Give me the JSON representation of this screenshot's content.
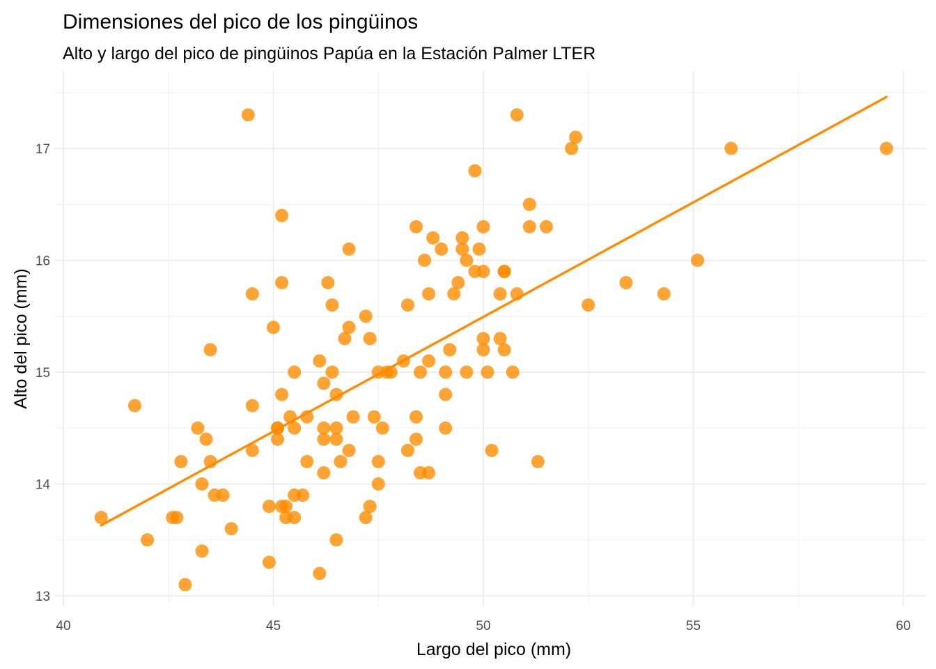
{
  "chart_data": {
    "type": "scatter",
    "title": "Dimensiones del pico de los pingüinos",
    "subtitle": "Alto y largo del pico de pingüinos Papúa en la Estación Palmer LTER",
    "xlabel": "Largo del pico (mm)",
    "ylabel": "Alto del pico (mm)",
    "xlim": [
      40,
      60.5
    ],
    "ylim": [
      12.9,
      17.6
    ],
    "x_ticks": [
      40,
      45,
      50,
      55,
      60
    ],
    "x_tick_labels": [
      "40",
      "45",
      "50",
      "55",
      "60"
    ],
    "y_ticks": [
      13,
      14,
      15,
      16,
      17
    ],
    "y_tick_labels": [
      "13",
      "14",
      "15",
      "16",
      "17"
    ],
    "grid": true,
    "legend": "none",
    "point_color": "#FF8C00",
    "point_opacity": 0.8,
    "line_color": "#FF8C00",
    "trend_line": {
      "type": "linear",
      "from": [
        40.9,
        13.63
      ],
      "to": [
        59.6,
        17.46
      ]
    },
    "points": [
      [
        40.9,
        13.7
      ],
      [
        41.7,
        14.7
      ],
      [
        42.0,
        13.5
      ],
      [
        42.6,
        13.7
      ],
      [
        42.7,
        13.7
      ],
      [
        42.8,
        14.2
      ],
      [
        42.9,
        13.1
      ],
      [
        43.2,
        14.5
      ],
      [
        43.3,
        14.0
      ],
      [
        43.3,
        13.4
      ],
      [
        43.4,
        14.4
      ],
      [
        43.5,
        15.2
      ],
      [
        43.5,
        14.2
      ],
      [
        43.6,
        13.9
      ],
      [
        43.8,
        13.9
      ],
      [
        44.0,
        13.6
      ],
      [
        44.4,
        17.3
      ],
      [
        44.5,
        15.7
      ],
      [
        44.5,
        14.7
      ],
      [
        44.5,
        14.3
      ],
      [
        44.9,
        13.8
      ],
      [
        44.9,
        13.3
      ],
      [
        45.0,
        15.4
      ],
      [
        45.1,
        14.5
      ],
      [
        45.1,
        14.5
      ],
      [
        45.1,
        14.4
      ],
      [
        45.2,
        16.4
      ],
      [
        45.2,
        15.8
      ],
      [
        45.2,
        14.8
      ],
      [
        45.2,
        13.8
      ],
      [
        45.3,
        13.8
      ],
      [
        45.3,
        13.7
      ],
      [
        45.4,
        14.6
      ],
      [
        45.5,
        15.0
      ],
      [
        45.5,
        14.5
      ],
      [
        45.5,
        13.9
      ],
      [
        45.5,
        13.7
      ],
      [
        45.7,
        13.9
      ],
      [
        45.8,
        14.6
      ],
      [
        45.8,
        14.2
      ],
      [
        46.1,
        15.1
      ],
      [
        46.1,
        13.2
      ],
      [
        46.2,
        14.9
      ],
      [
        46.2,
        14.5
      ],
      [
        46.2,
        14.4
      ],
      [
        46.2,
        14.1
      ],
      [
        46.3,
        15.8
      ],
      [
        46.4,
        15.6
      ],
      [
        46.4,
        15.0
      ],
      [
        46.5,
        14.8
      ],
      [
        46.5,
        14.5
      ],
      [
        46.5,
        14.4
      ],
      [
        46.5,
        13.5
      ],
      [
        46.6,
        14.2
      ],
      [
        46.7,
        15.3
      ],
      [
        46.8,
        16.1
      ],
      [
        46.8,
        15.4
      ],
      [
        46.8,
        14.3
      ],
      [
        46.9,
        14.6
      ],
      [
        47.2,
        15.5
      ],
      [
        47.2,
        13.7
      ],
      [
        47.3,
        15.3
      ],
      [
        47.3,
        13.8
      ],
      [
        47.4,
        14.6
      ],
      [
        47.5,
        15.0
      ],
      [
        47.5,
        14.2
      ],
      [
        47.5,
        14.0
      ],
      [
        47.6,
        14.5
      ],
      [
        47.7,
        15.0
      ],
      [
        47.8,
        15.0
      ],
      [
        48.1,
        15.1
      ],
      [
        48.2,
        15.6
      ],
      [
        48.2,
        14.3
      ],
      [
        48.4,
        16.3
      ],
      [
        48.4,
        14.6
      ],
      [
        48.4,
        14.4
      ],
      [
        48.5,
        15.0
      ],
      [
        48.5,
        14.1
      ],
      [
        48.6,
        16.0
      ],
      [
        48.7,
        15.7
      ],
      [
        48.7,
        15.1
      ],
      [
        48.7,
        14.1
      ],
      [
        48.8,
        16.2
      ],
      [
        49.0,
        16.1
      ],
      [
        49.1,
        15.0
      ],
      [
        49.1,
        14.8
      ],
      [
        49.1,
        14.5
      ],
      [
        49.2,
        15.2
      ],
      [
        49.3,
        15.7
      ],
      [
        49.4,
        15.8
      ],
      [
        49.5,
        16.2
      ],
      [
        49.5,
        16.1
      ],
      [
        49.6,
        16.0
      ],
      [
        49.6,
        15.0
      ],
      [
        49.8,
        16.8
      ],
      [
        49.8,
        15.9
      ],
      [
        49.9,
        16.1
      ],
      [
        50.0,
        16.3
      ],
      [
        50.0,
        15.9
      ],
      [
        50.0,
        15.3
      ],
      [
        50.0,
        15.2
      ],
      [
        50.1,
        15.0
      ],
      [
        50.2,
        14.3
      ],
      [
        50.4,
        15.7
      ],
      [
        50.4,
        15.3
      ],
      [
        50.5,
        15.9
      ],
      [
        50.5,
        15.9
      ],
      [
        50.5,
        15.2
      ],
      [
        50.7,
        15.0
      ],
      [
        50.8,
        17.3
      ],
      [
        50.8,
        15.7
      ],
      [
        51.1,
        16.5
      ],
      [
        51.1,
        16.3
      ],
      [
        51.3,
        14.2
      ],
      [
        51.5,
        16.3
      ],
      [
        52.1,
        17.0
      ],
      [
        52.2,
        17.1
      ],
      [
        52.5,
        15.6
      ],
      [
        53.4,
        15.8
      ],
      [
        54.3,
        15.7
      ],
      [
        55.1,
        16.0
      ],
      [
        55.9,
        17.0
      ],
      [
        59.6,
        17.0
      ]
    ]
  }
}
